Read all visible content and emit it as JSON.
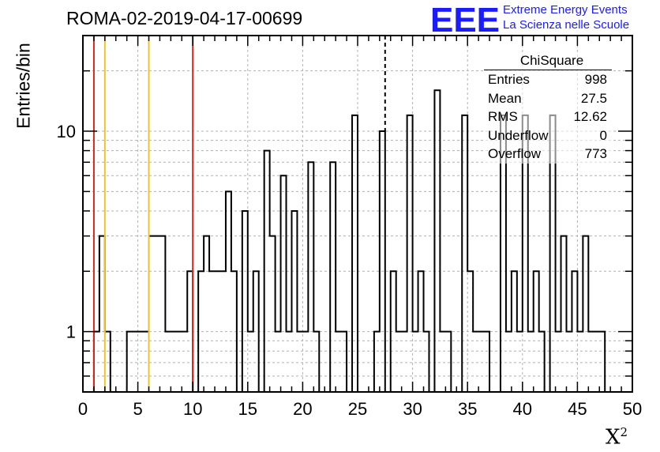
{
  "title": "ROMA-02-2019-04-17-00699",
  "logo": {
    "mark": "EEE",
    "line1": "Extreme Energy Events",
    "line2": "La Scienza nelle Scuole",
    "color": "#1b1bff"
  },
  "stats": {
    "title": "ChiSquare",
    "rows": [
      {
        "label": "Entries",
        "value": "998"
      },
      {
        "label": "Mean",
        "value": "27.5"
      },
      {
        "label": "RMS",
        "value": "12.62"
      },
      {
        "label": "Underflow",
        "value": "0"
      },
      {
        "label": "Overflow",
        "value": "773"
      }
    ]
  },
  "chart_data": {
    "type": "histogram",
    "title": "ROMA-02-2019-04-17-00699",
    "xlabel": "X²",
    "ylabel": "Entries/bin",
    "xlim": [
      0,
      50
    ],
    "ylim": [
      0.5,
      30
    ],
    "yscale": "log",
    "bin_width": 0.5,
    "x_ticks": [
      0,
      5,
      10,
      15,
      20,
      25,
      30,
      35,
      40,
      45,
      50
    ],
    "y_ticks": [
      1,
      10
    ],
    "grid": true,
    "bins": [
      {
        "x": 1.0,
        "y": 1
      },
      {
        "x": 1.5,
        "y": 3
      },
      {
        "x": 2.0,
        "y": 1
      },
      {
        "x": 4.0,
        "y": 1
      },
      {
        "x": 4.5,
        "y": 1
      },
      {
        "x": 5.0,
        "y": 1
      },
      {
        "x": 5.5,
        "y": 1
      },
      {
        "x": 6.0,
        "y": 3
      },
      {
        "x": 6.5,
        "y": 3
      },
      {
        "x": 7.0,
        "y": 3
      },
      {
        "x": 7.5,
        "y": 1
      },
      {
        "x": 8.0,
        "y": 1
      },
      {
        "x": 8.5,
        "y": 1
      },
      {
        "x": 9.0,
        "y": 1
      },
      {
        "x": 9.5,
        "y": 2
      },
      {
        "x": 10.5,
        "y": 2
      },
      {
        "x": 11.0,
        "y": 3
      },
      {
        "x": 11.5,
        "y": 2
      },
      {
        "x": 12.0,
        "y": 2
      },
      {
        "x": 12.5,
        "y": 2
      },
      {
        "x": 13.0,
        "y": 5
      },
      {
        "x": 13.5,
        "y": 2
      },
      {
        "x": 14.5,
        "y": 4
      },
      {
        "x": 15.0,
        "y": 1
      },
      {
        "x": 15.5,
        "y": 2
      },
      {
        "x": 16.5,
        "y": 8
      },
      {
        "x": 17.0,
        "y": 3
      },
      {
        "x": 17.5,
        "y": 1
      },
      {
        "x": 18.0,
        "y": 6
      },
      {
        "x": 18.5,
        "y": 1
      },
      {
        "x": 19.0,
        "y": 4
      },
      {
        "x": 19.5,
        "y": 1
      },
      {
        "x": 20.0,
        "y": 1
      },
      {
        "x": 20.5,
        "y": 7
      },
      {
        "x": 21.0,
        "y": 1
      },
      {
        "x": 22.5,
        "y": 7
      },
      {
        "x": 23.0,
        "y": 1
      },
      {
        "x": 23.5,
        "y": 1
      },
      {
        "x": 24.5,
        "y": 12
      },
      {
        "x": 26.5,
        "y": 1
      },
      {
        "x": 27.0,
        "y": 10
      },
      {
        "x": 28.0,
        "y": 2
      },
      {
        "x": 28.5,
        "y": 1
      },
      {
        "x": 29.0,
        "y": 1
      },
      {
        "x": 29.5,
        "y": 12
      },
      {
        "x": 30.0,
        "y": 1
      },
      {
        "x": 30.5,
        "y": 2
      },
      {
        "x": 31.0,
        "y": 1
      },
      {
        "x": 32.0,
        "y": 16
      },
      {
        "x": 32.5,
        "y": 1
      },
      {
        "x": 33.0,
        "y": 1
      },
      {
        "x": 34.5,
        "y": 12
      },
      {
        "x": 35.0,
        "y": 2
      },
      {
        "x": 35.5,
        "y": 1
      },
      {
        "x": 36.0,
        "y": 1
      },
      {
        "x": 36.5,
        "y": 1
      },
      {
        "x": 38.0,
        "y": 12
      },
      {
        "x": 38.5,
        "y": 1
      },
      {
        "x": 39.0,
        "y": 2
      },
      {
        "x": 39.5,
        "y": 1
      },
      {
        "x": 40.0,
        "y": 12
      },
      {
        "x": 40.5,
        "y": 1
      },
      {
        "x": 41.0,
        "y": 2
      },
      {
        "x": 41.5,
        "y": 1
      },
      {
        "x": 42.5,
        "y": 12
      },
      {
        "x": 43.0,
        "y": 1
      },
      {
        "x": 43.5,
        "y": 3
      },
      {
        "x": 44.0,
        "y": 1
      },
      {
        "x": 44.5,
        "y": 2
      },
      {
        "x": 45.0,
        "y": 1
      },
      {
        "x": 45.5,
        "y": 3
      },
      {
        "x": 46.0,
        "y": 1
      },
      {
        "x": 46.5,
        "y": 1
      },
      {
        "x": 47.0,
        "y": 1
      }
    ],
    "vertical_lines": [
      {
        "x": 1.0,
        "color": "#d9261c",
        "style": "solid"
      },
      {
        "x": 2.0,
        "color": "#f2c12e",
        "style": "solid"
      },
      {
        "x": 6.0,
        "color": "#f2c12e",
        "style": "solid"
      },
      {
        "x": 10.0,
        "color": "#d9261c",
        "style": "solid"
      },
      {
        "x": 27.5,
        "color": "#000000",
        "style": "dashed"
      }
    ]
  }
}
